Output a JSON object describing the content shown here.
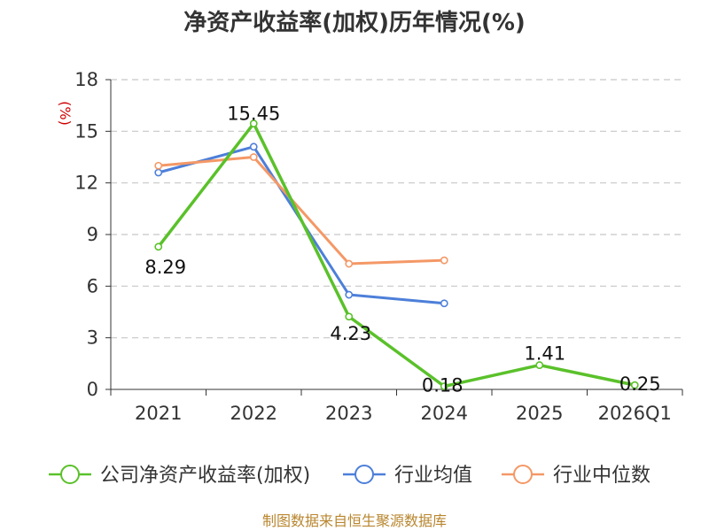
{
  "chart_data": {
    "type": "line",
    "title": "净资产收益率(加权)历年情况(%)",
    "ylabel": "(%)",
    "xlabel": "",
    "categories": [
      "2021",
      "2022",
      "2023",
      "2024",
      "2025",
      "2026Q1"
    ],
    "ylim": [
      0,
      18
    ],
    "yticks": [
      0,
      3,
      6,
      9,
      12,
      15,
      18
    ],
    "grid": true,
    "legend_position": "bottom",
    "series": [
      {
        "name": "公司净资产收益率(加权)",
        "color": "#5ac12a",
        "values": [
          8.29,
          15.45,
          4.23,
          0.18,
          1.41,
          0.25
        ],
        "labels": [
          "8.29",
          "15.45",
          "4.23",
          "0.18",
          "1.41",
          "0.25"
        ]
      },
      {
        "name": "行业均值",
        "color": "#4d7fd9",
        "values": [
          12.6,
          14.1,
          5.5,
          5.0,
          null,
          null
        ]
      },
      {
        "name": "行业中位数",
        "color": "#f49866",
        "values": [
          13.0,
          13.5,
          7.3,
          7.5,
          null,
          null
        ]
      }
    ],
    "source": "制图数据来自恒生聚源数据库"
  }
}
